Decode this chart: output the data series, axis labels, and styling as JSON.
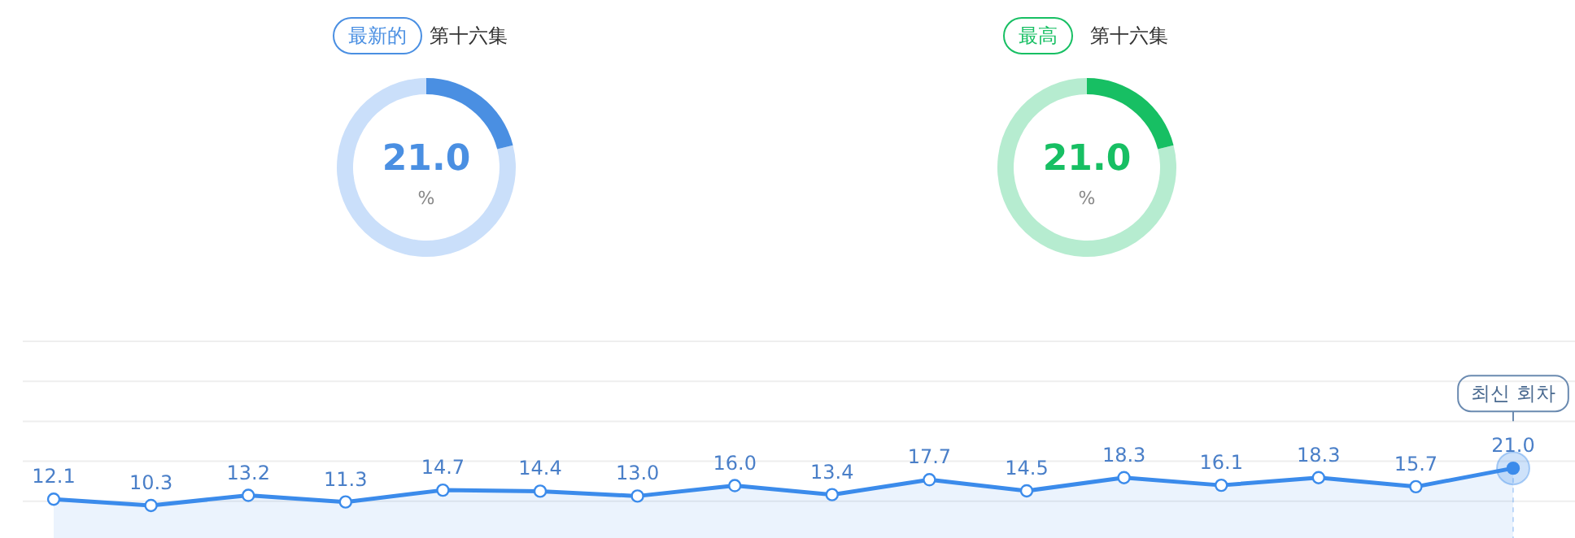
{
  "chart_data": [
    {
      "type": "donut",
      "title": "最新的",
      "subtitle": "第十六集",
      "categories": [
        null,
        null
      ],
      "values": [
        21.0,
        79.0
      ],
      "colors": [
        "#4a8fe2",
        "#cadffa"
      ],
      "value_labels": [
        "21.0",
        null
      ],
      "annotations": [
        "%"
      ]
    },
    {
      "type": "donut",
      "title": "最高",
      "subtitle": "第十六集",
      "categories": [
        null,
        null
      ],
      "values": [
        21.0,
        79.0
      ],
      "colors": [
        "#17bf63",
        "#b6ecd0"
      ],
      "value_labels": [
        "21.0",
        null
      ],
      "annotations": [
        "%"
      ]
    },
    {
      "type": "area",
      "categories": [
        null,
        null,
        null,
        null,
        null,
        null,
        null,
        null,
        null,
        null,
        null,
        null,
        null,
        null,
        null,
        null
      ],
      "values": [
        12.1,
        10.3,
        13.2,
        11.3,
        14.7,
        14.4,
        13.0,
        16.0,
        13.4,
        17.7,
        14.5,
        18.3,
        16.1,
        18.3,
        15.7,
        21.0
      ],
      "value_labels": [
        "12.1",
        "10.3",
        "13.2",
        "11.3",
        "14.7",
        "14.4",
        "13.0",
        "16.0",
        "13.4",
        "17.7",
        "14.5",
        "18.3",
        "16.1",
        "18.3",
        "15.7",
        "21.0"
      ],
      "color": "#3b8beb",
      "marker": "circle",
      "grid": "y",
      "ylim": [
        0,
        57.5
      ],
      "yticks": [
        11.5,
        23,
        34.5,
        46,
        57.5
      ],
      "tick_labels": false,
      "annotations": [
        "최신 회차"
      ]
    }
  ]
}
